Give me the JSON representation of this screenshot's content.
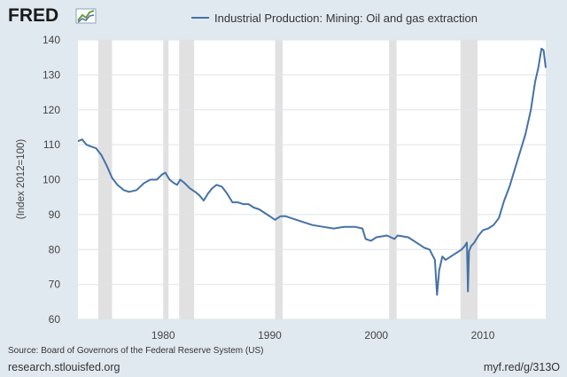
{
  "header": {
    "logo_text": "FRED",
    "logo_icon": "line-chart-icon"
  },
  "colors": {
    "series": "#4572a7",
    "recession": "#e1e1e1",
    "background": "#e1e9f0",
    "plot_bg": "#ffffff",
    "grid": "#dfe4ea"
  },
  "chart_data": {
    "type": "line",
    "title": "",
    "xlabel": "",
    "ylabel": "(Index 2012=100)",
    "xlim": [
      1972.0,
      2015.9
    ],
    "ylim": [
      60,
      140
    ],
    "x_ticks": [
      1980,
      1990,
      2000,
      2010
    ],
    "y_ticks": [
      60,
      70,
      80,
      90,
      100,
      110,
      120,
      130,
      140
    ],
    "grid": "horizontal",
    "legend_position": "top",
    "recessions": [
      [
        1973.9,
        1975.2
      ],
      [
        1980.0,
        1980.5
      ],
      [
        1981.5,
        1982.9
      ],
      [
        1990.5,
        1991.2
      ],
      [
        2001.2,
        2001.9
      ],
      [
        2007.9,
        2009.5
      ]
    ],
    "series": [
      {
        "name": "Industrial Production: Mining: Oil and gas extraction",
        "x": [
          1972.0,
          1972.4,
          1972.8,
          1973.2,
          1973.7,
          1974.2,
          1974.7,
          1975.2,
          1975.7,
          1976.3,
          1976.8,
          1977.5,
          1978.2,
          1978.8,
          1979.4,
          1979.9,
          1980.2,
          1980.6,
          1981.0,
          1981.3,
          1981.6,
          1982.0,
          1982.5,
          1983.0,
          1983.4,
          1983.8,
          1984.2,
          1984.6,
          1985.0,
          1985.5,
          1986.0,
          1986.5,
          1987.0,
          1987.5,
          1988.0,
          1988.5,
          1989.0,
          1989.5,
          1990.0,
          1990.5,
          1991.0,
          1991.5,
          1992.0,
          1993.0,
          1994.0,
          1995.0,
          1996.0,
          1997.0,
          1998.0,
          1998.7,
          1999.0,
          1999.5,
          2000.0,
          2001.0,
          2001.7,
          2002.0,
          2003.0,
          2004.0,
          2004.5,
          2005.0,
          2005.5,
          2005.7,
          2005.9,
          2006.2,
          2006.5,
          2007.0,
          2007.5,
          2008.0,
          2008.3,
          2008.5,
          2008.6,
          2008.7,
          2008.9,
          2009.2,
          2009.6,
          2010.0,
          2010.5,
          2011.0,
          2011.5,
          2012.0,
          2012.5,
          2013.0,
          2013.5,
          2014.0,
          2014.5,
          2014.9,
          2015.2,
          2015.5,
          2015.7,
          2015.9
        ],
        "values": [
          111.0,
          111.5,
          110.0,
          109.5,
          109.0,
          107.0,
          104.0,
          100.5,
          98.5,
          97.0,
          96.5,
          97.0,
          99.0,
          100.0,
          100.0,
          101.5,
          102.0,
          100.0,
          99.0,
          98.5,
          100.0,
          99.0,
          97.5,
          96.5,
          95.5,
          94.0,
          96.0,
          97.5,
          98.5,
          98.0,
          96.0,
          93.5,
          93.5,
          93.0,
          93.0,
          92.0,
          91.5,
          90.5,
          89.5,
          88.5,
          89.5,
          89.5,
          89.0,
          88.0,
          87.0,
          86.5,
          86.0,
          86.5,
          86.5,
          86.0,
          83.0,
          82.5,
          83.5,
          84.0,
          83.0,
          84.0,
          83.5,
          81.5,
          80.5,
          80.0,
          77.0,
          67.0,
          74.0,
          78.0,
          77.0,
          78.0,
          79.0,
          80.0,
          81.0,
          82.0,
          68.0,
          79.5,
          81.0,
          82.0,
          84.0,
          85.5,
          86.0,
          87.0,
          89.0,
          94.0,
          98.0,
          103.0,
          108.0,
          113.0,
          120.0,
          128.0,
          132.0,
          137.5,
          137.0,
          132.0
        ]
      }
    ]
  },
  "footer": {
    "source": "Source: Board of Governors of the Federal Reserve System (US)",
    "site": "research.stlouisfed.org",
    "short_url": "myf.red/g/313O"
  }
}
